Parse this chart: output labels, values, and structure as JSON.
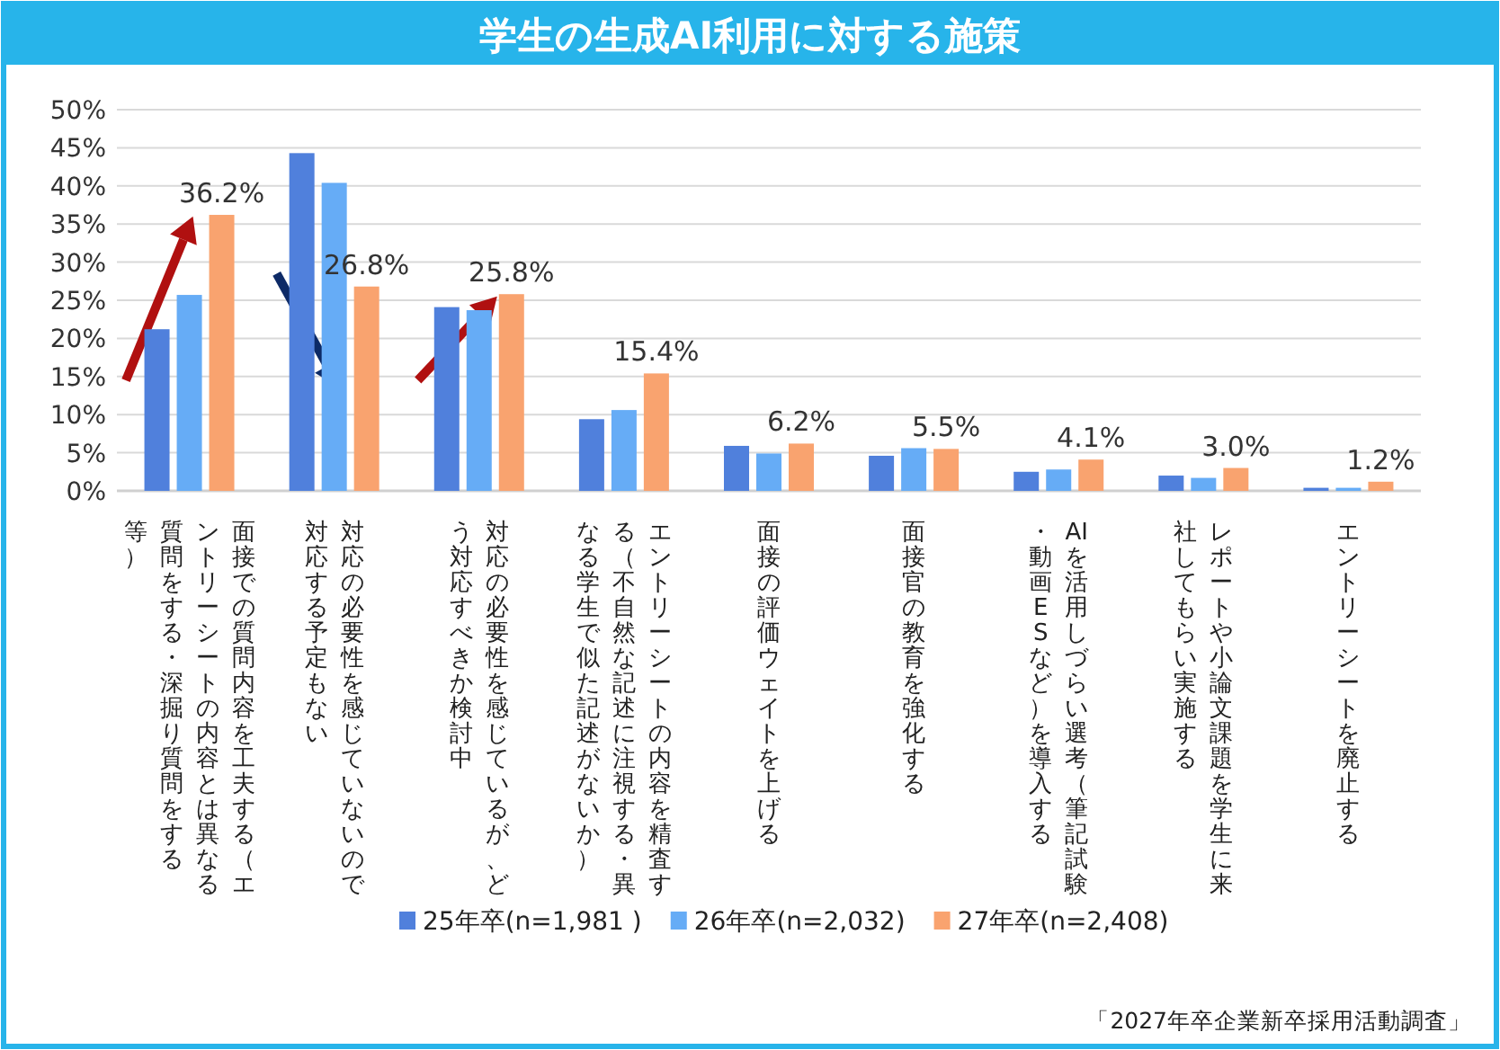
{
  "chart_data": {
    "type": "bar",
    "title": "学生の生成AI利用に対する施策",
    "categories": [
      "面接での質問内容を工夫する（エントリーシートの内容とは異なる質問をする・深掘り質問をする等）",
      "対応の必要性を感じていないので対応する予定もない",
      "対応の必要性を感じているが、どう対応すべきか検討中",
      "エントリーシートの内容を精査する（不自然な記述に注視する・異なる学生で似た記述がないか）",
      "面接の評価ウェイトを上げる",
      "面接官の教育を強化する",
      "AIを活用しづらい選考（筆記試験・動画ESなど）を導入する",
      "レポートや小論文課題を学生に来社してもらい実施する",
      "エントリーシートを廃止する"
    ],
    "series": [
      {
        "name": "25年卒(n=1,981 )",
        "color": "#5080dc",
        "values": [
          21.2,
          44.3,
          24.1,
          9.4,
          5.9,
          4.6,
          2.5,
          2.0,
          0.4
        ]
      },
      {
        "name": "26年卒(n=2,032)",
        "color": "#66acf6",
        "values": [
          25.7,
          40.4,
          23.7,
          10.6,
          4.9,
          5.6,
          2.8,
          1.7,
          0.4
        ]
      },
      {
        "name": "27年卒(n=2,408)",
        "color": "#f9a36f",
        "values": [
          36.2,
          26.8,
          25.8,
          15.4,
          6.2,
          5.5,
          4.1,
          3.0,
          1.2
        ],
        "value_labels": [
          "36.2%",
          "26.8%",
          "25.8%",
          "15.4%",
          "6.2%",
          "5.5%",
          "4.1%",
          "3.0%",
          "1.2%"
        ]
      }
    ],
    "ylim": [
      0,
      50
    ],
    "yticks": [
      {
        "value": 0,
        "label": "0%"
      },
      {
        "value": 5,
        "label": "5%"
      },
      {
        "value": 10,
        "label": "10%"
      },
      {
        "value": 15,
        "label": "15%"
      },
      {
        "value": 20,
        "label": "20%"
      },
      {
        "value": 25,
        "label": "25%"
      },
      {
        "value": 30,
        "label": "30%"
      },
      {
        "value": 35,
        "label": "35%"
      },
      {
        "value": 40,
        "label": "40%"
      },
      {
        "value": 45,
        "label": "45%"
      },
      {
        "value": 50,
        "label": "50%"
      }
    ],
    "grid": "y",
    "legend": "bottom",
    "annotations": [
      "「2027年卒企業新卒採用活動調査」"
    ]
  }
}
